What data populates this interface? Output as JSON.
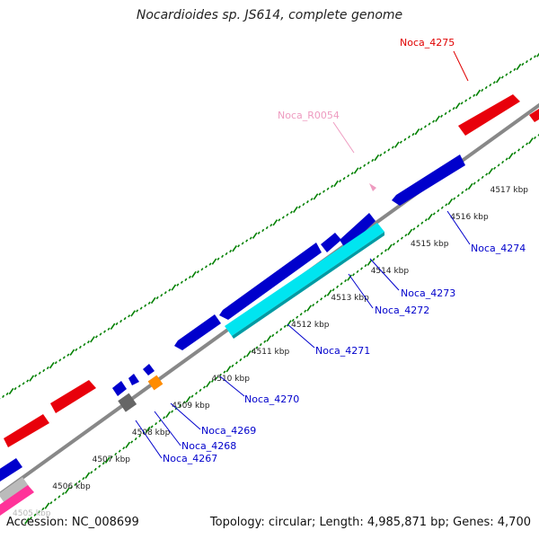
{
  "title": "Nocardioides sp. JS614, complete genome",
  "footer": {
    "accession": "Accession: NC_008699",
    "summary": "Topology: circular; Length: 4,985,871 bp; Genes: 4,700"
  },
  "colors": {
    "backbone": "#808080",
    "forward_gene": "#e8000b",
    "reverse_gene": "#0000cc",
    "highlight_gene": "#00e5f0",
    "orange_gene": "#ff8c00",
    "gray_gene": "#666666",
    "pink_gene": "#ff3399",
    "rna_label": "#ee9bc0",
    "tick": "#008000",
    "reverse_label": "#0000cc",
    "forward_label": "#e00000"
  },
  "kbp_labels": [
    "4505 kbp",
    "4506 kbp",
    "4507 kbp",
    "4508 kbp",
    "4509 kbp",
    "4510 kbp",
    "4511 kbp",
    "4512 kbp",
    "4513 kbp",
    "4514 kbp",
    "4515 kbp",
    "4516 kbp",
    "4517 kbp"
  ],
  "gene_labels": {
    "noca_4275": "Noca_4275",
    "noca_r0054": "Noca_R0054",
    "noca_4274": "Noca_4274",
    "noca_4273": "Noca_4273",
    "noca_4272": "Noca_4272",
    "noca_4271": "Noca_4271",
    "noca_4270": "Noca_4270",
    "noca_4269": "Noca_4269",
    "noca_4268": "Noca_4268",
    "noca_4267": "Noca_4267"
  }
}
